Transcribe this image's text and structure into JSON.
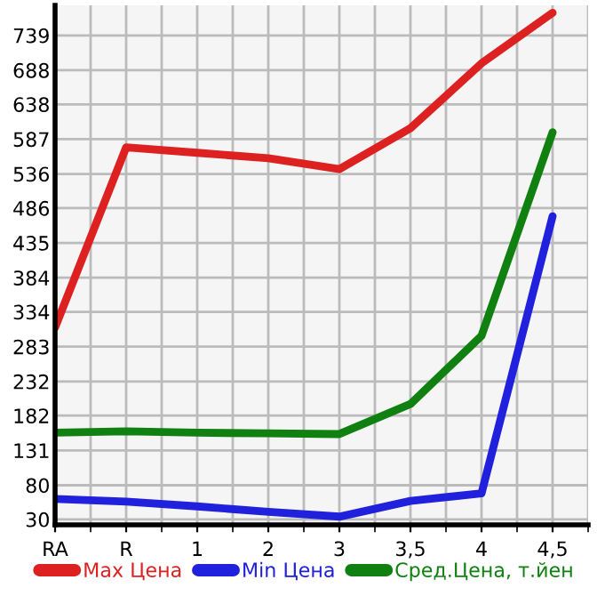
{
  "chart_data": {
    "type": "line",
    "categories": [
      "RA",
      "R",
      "1",
      "2",
      "3",
      "3,5",
      "4",
      "4,5"
    ],
    "series": [
      {
        "name": "Max Цена",
        "color": "#dd2020",
        "values": [
          311,
          575,
          567,
          559,
          543,
          603,
          698,
          772
        ]
      },
      {
        "name": "Min Цена",
        "color": "#2020dd",
        "values": [
          60,
          56,
          49,
          41,
          34,
          57,
          68,
          474
        ]
      },
      {
        "name": "Сред.Цена, т.йен",
        "color": "#108010",
        "values": [
          157,
          159,
          157,
          156,
          155,
          199,
          299,
          597
        ]
      }
    ],
    "ylim": [
      22,
      783
    ],
    "yticks": [
      30,
      80,
      131,
      182,
      232,
      283,
      334,
      384,
      435,
      486,
      536,
      587,
      638,
      688,
      739
    ],
    "grid": true,
    "legend": "bottom",
    "marker": "none",
    "line_style": "solid"
  }
}
